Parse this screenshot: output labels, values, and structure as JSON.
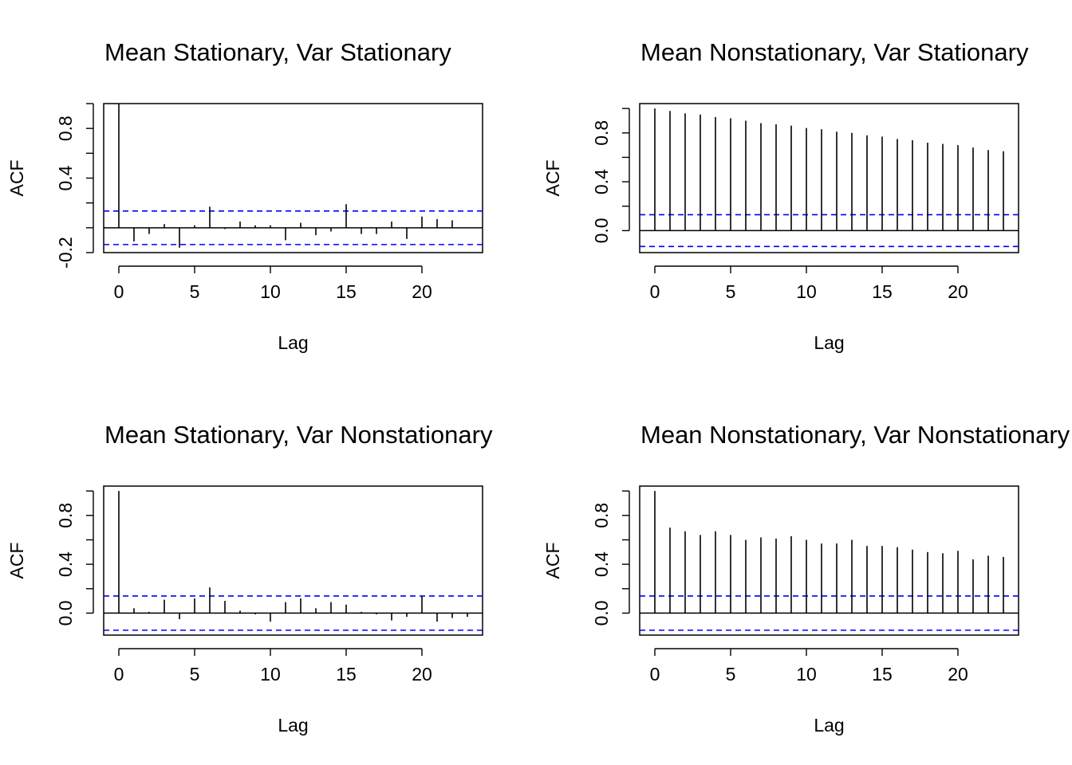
{
  "figure": {
    "background": "#ffffff",
    "stem_color": "#000000",
    "ci_color": "#0000ff"
  },
  "chart_data": [
    {
      "type": "bar",
      "title": "Mean Stationary, Var Stationary",
      "xlabel": "Lag",
      "ylabel": "ACF",
      "xlim": [
        -1,
        24
      ],
      "ylim": [
        -0.2,
        1.0
      ],
      "x_ticks": [
        0,
        5,
        10,
        15,
        20
      ],
      "y_ticks": [
        "-0.2",
        "0.4",
        "0.8"
      ],
      "y_minor_ticks": [
        0.0,
        0.2,
        0.6,
        1.0
      ],
      "ci": 0.135,
      "lags": [
        0,
        1,
        2,
        3,
        4,
        5,
        6,
        7,
        8,
        9,
        10,
        11,
        12,
        13,
        14,
        15,
        16,
        17,
        18,
        19,
        20,
        21,
        22,
        23
      ],
      "values": [
        1.0,
        -0.11,
        -0.05,
        0.03,
        -0.16,
        0.02,
        0.17,
        -0.01,
        0.05,
        0.02,
        0.02,
        -0.1,
        0.04,
        -0.06,
        -0.03,
        0.19,
        -0.05,
        -0.05,
        0.05,
        -0.09,
        0.09,
        0.07,
        0.06,
        0.0
      ]
    },
    {
      "type": "bar",
      "title": "Mean Nonstationary, Var Stationary",
      "xlabel": "Lag",
      "ylabel": "ACF",
      "xlim": [
        -1,
        24
      ],
      "ylim": [
        -0.18,
        1.04
      ],
      "x_ticks": [
        0,
        5,
        10,
        15,
        20
      ],
      "y_ticks": [
        "0.0",
        "0.4",
        "0.8"
      ],
      "y_minor_ticks": [
        0.2,
        0.6,
        1.0
      ],
      "ci": 0.13,
      "lags": [
        0,
        1,
        2,
        3,
        4,
        5,
        6,
        7,
        8,
        9,
        10,
        11,
        12,
        13,
        14,
        15,
        16,
        17,
        18,
        19,
        20,
        21,
        22,
        23
      ],
      "values": [
        1.0,
        0.98,
        0.96,
        0.95,
        0.93,
        0.92,
        0.9,
        0.88,
        0.87,
        0.86,
        0.84,
        0.83,
        0.81,
        0.8,
        0.78,
        0.77,
        0.75,
        0.74,
        0.72,
        0.71,
        0.7,
        0.68,
        0.66,
        0.65
      ]
    },
    {
      "type": "bar",
      "title": "Mean Stationary, Var Nonstationary",
      "xlabel": "Lag",
      "ylabel": "ACF",
      "xlim": [
        -1,
        24
      ],
      "ylim": [
        -0.18,
        1.04
      ],
      "x_ticks": [
        0,
        5,
        10,
        15,
        20
      ],
      "y_ticks": [
        "0.0",
        "0.4",
        "0.8"
      ],
      "y_minor_ticks": [
        0.2,
        0.6,
        1.0
      ],
      "ci": 0.14,
      "lags": [
        0,
        1,
        2,
        3,
        4,
        5,
        6,
        7,
        8,
        9,
        10,
        11,
        12,
        13,
        14,
        15,
        16,
        17,
        18,
        19,
        20,
        21,
        22,
        23
      ],
      "values": [
        1.0,
        0.04,
        0.01,
        0.11,
        -0.05,
        0.12,
        0.21,
        0.1,
        0.02,
        -0.01,
        -0.07,
        0.09,
        0.12,
        0.04,
        0.09,
        0.07,
        0.01,
        -0.01,
        -0.06,
        -0.03,
        0.14,
        -0.07,
        -0.04,
        -0.03
      ]
    },
    {
      "type": "bar",
      "title": "Mean Nonstationary, Var Nonstationary",
      "xlabel": "Lag",
      "ylabel": "ACF",
      "xlim": [
        -1,
        24
      ],
      "ylim": [
        -0.18,
        1.04
      ],
      "x_ticks": [
        0,
        5,
        10,
        15,
        20
      ],
      "y_ticks": [
        "0.0",
        "0.4",
        "0.8"
      ],
      "y_minor_ticks": [
        0.2,
        0.6,
        1.0
      ],
      "ci": 0.14,
      "lags": [
        0,
        1,
        2,
        3,
        4,
        5,
        6,
        7,
        8,
        9,
        10,
        11,
        12,
        13,
        14,
        15,
        16,
        17,
        18,
        19,
        20,
        21,
        22,
        23
      ],
      "values": [
        1.0,
        0.7,
        0.67,
        0.64,
        0.67,
        0.64,
        0.6,
        0.62,
        0.61,
        0.63,
        0.6,
        0.57,
        0.57,
        0.6,
        0.55,
        0.55,
        0.54,
        0.52,
        0.5,
        0.49,
        0.51,
        0.44,
        0.47,
        0.46
      ]
    }
  ]
}
